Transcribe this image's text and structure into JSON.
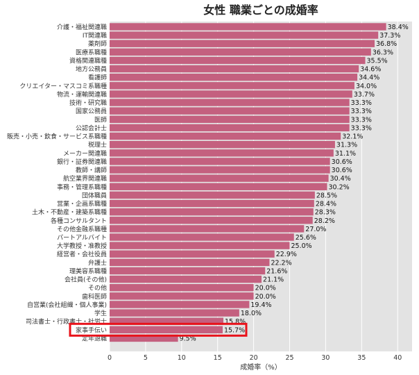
{
  "chart_data": {
    "type": "bar",
    "orientation": "horizontal",
    "title": "女性 職業ごとの成婚率",
    "xlabel": "成婚率（%）",
    "ylabel": "",
    "xlim": [
      0,
      42
    ],
    "xticks": [
      0,
      5,
      10,
      15,
      20,
      25,
      30,
      35,
      40
    ],
    "grid": true,
    "bar_color": "#c4607f",
    "plot_bg": "#e3e3e3",
    "highlight_color": "#e8131b",
    "highlight_category": "家事手伝い",
    "categories": [
      "介護・福祉関連職",
      "IT関連職",
      "薬剤師",
      "医療系職種",
      "資格関連職種",
      "地方公務員",
      "看護師",
      "クリエイター・マスコミ系職種",
      "物流・運輸関連職",
      "技術・研究職",
      "国家公務員",
      "医師",
      "公認会計士",
      "販売・小売・飲食・サービス系職種",
      "税理士",
      "メーカー関連職",
      "銀行・証券関連職",
      "教師・講師",
      "航空業界関連職",
      "事務・管理系職種",
      "団体職員",
      "営業・企画系職種",
      "土木・不動産・建築系職種",
      "各種コンサルタント",
      "その他金融系職種",
      "パートアルバイト",
      "大学教授・准教授",
      "経営者・会社役員",
      "弁護士",
      "理美容系職種",
      "会社員(その他)",
      "その他",
      "歯科医師",
      "自営業(会社組織・個人事業)",
      "学生",
      "司法書士・行政書士・社労士",
      "家事手伝い",
      "定年退職"
    ],
    "values": [
      38.4,
      37.3,
      36.8,
      36.3,
      35.5,
      34.6,
      34.4,
      34.0,
      33.7,
      33.3,
      33.3,
      33.3,
      33.3,
      32.1,
      31.3,
      31.1,
      30.6,
      30.6,
      30.4,
      30.2,
      28.5,
      28.4,
      28.3,
      28.2,
      27.0,
      25.6,
      25.0,
      22.9,
      22.2,
      21.6,
      21.1,
      20.0,
      20.0,
      19.4,
      18.0,
      15.8,
      15.7,
      9.5
    ],
    "value_labels": [
      "38.4%",
      "37.3%",
      "36.8%",
      "36.3%",
      "35.5%",
      "34.6%",
      "34.4%",
      "34.0%",
      "33.7%",
      "33.3%",
      "33.3%",
      "33.3%",
      "33.3%",
      "32.1%",
      "31.3%",
      "31.1%",
      "30.6%",
      "30.6%",
      "30.4%",
      "30.2%",
      "28.5%",
      "28.4%",
      "28.3%",
      "28.2%",
      "27.0%",
      "25.6%",
      "25.0%",
      "22.9%",
      "22.2%",
      "21.6%",
      "21.1%",
      "20.0%",
      "20.0%",
      "19.4%",
      "18.0%",
      "15.8%",
      "15.7%",
      "9.5%"
    ]
  }
}
